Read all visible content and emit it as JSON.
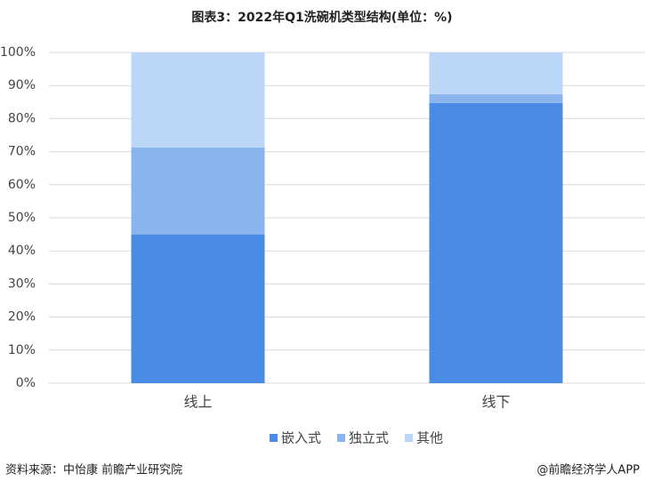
{
  "chart_data": {
    "type": "stacked-bar",
    "title": "图表3：2022年Q1洗碗机类型结构(单位：%)",
    "categories": [
      "线上",
      "线下"
    ],
    "series": [
      {
        "name": "嵌入式",
        "color": "#4a8be6",
        "values": [
          45,
          84.7
        ]
      },
      {
        "name": "独立式",
        "color": "#8ab4ee",
        "values": [
          26.3,
          2.7
        ]
      },
      {
        "name": "其他",
        "color": "#bcd6f8",
        "values": [
          28.7,
          12.6
        ]
      }
    ],
    "ylim": [
      0,
      100
    ],
    "yticks": [
      {
        "value": 0,
        "label": "0%"
      },
      {
        "value": 10,
        "label": "10%"
      },
      {
        "value": 20,
        "label": "20%"
      },
      {
        "value": 30,
        "label": "30%"
      },
      {
        "value": 40,
        "label": "40%"
      },
      {
        "value": 50,
        "label": "50%"
      },
      {
        "value": 60,
        "label": "60%"
      },
      {
        "value": 70,
        "label": "70%"
      },
      {
        "value": 80,
        "label": "80%"
      },
      {
        "value": 90,
        "label": "90%"
      },
      {
        "value": 100,
        "label": "100%"
      }
    ],
    "grid": true
  },
  "source": "资料来源：中怡康 前瞻产业研究院",
  "credit": "@前瞻经济学人APP"
}
